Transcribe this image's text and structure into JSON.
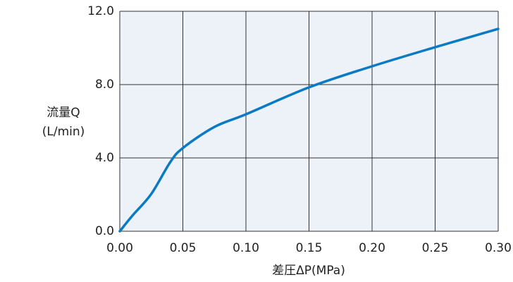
{
  "chart_data": {
    "type": "line",
    "y_label_lines": [
      "流量Q",
      "(L/min)"
    ],
    "x_label": "差圧ΔP(MPa)",
    "x": [
      0,
      0.01,
      0.025,
      0.04,
      0.05,
      0.075,
      0.1,
      0.15,
      0.2,
      0.25,
      0.3
    ],
    "series": [
      {
        "color": "#0a7ac4",
        "values": [
          0,
          0.85,
          2.04,
          3.77,
          4.54,
          5.69,
          6.38,
          7.85,
          9.0,
          10.04,
          11.04
        ]
      }
    ],
    "xlim": [
      0,
      0.3
    ],
    "xticks": [
      {
        "value": 0,
        "label": "0.00"
      },
      {
        "value": 0.05,
        "label": "0.05"
      },
      {
        "value": 0.1,
        "label": "0.10"
      },
      {
        "value": 0.15,
        "label": "0.15"
      },
      {
        "value": 0.2,
        "label": "0.20"
      },
      {
        "value": 0.25,
        "label": "0.25"
      },
      {
        "value": 0.3,
        "label": "0.30"
      }
    ],
    "ylim": [
      0,
      12
    ],
    "yticks": [
      {
        "value": 0,
        "label": "0.0"
      },
      {
        "value": 4,
        "label": "4.0"
      },
      {
        "value": 8,
        "label": "8.0"
      },
      {
        "value": 12,
        "label": "12.0"
      }
    ],
    "grid": true
  }
}
